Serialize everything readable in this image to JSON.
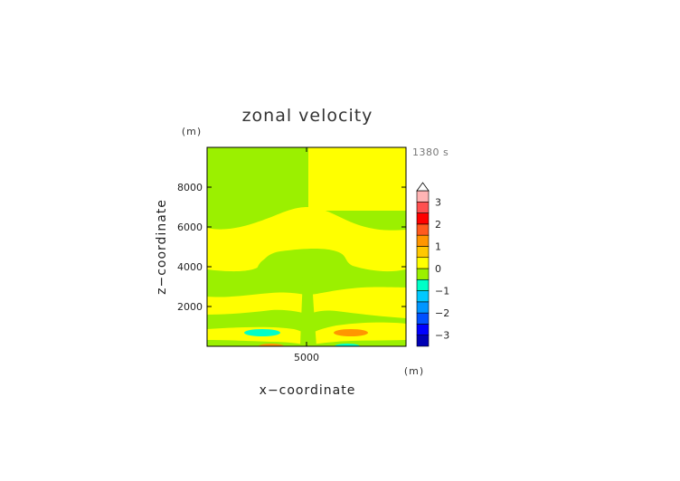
{
  "chart_data": {
    "type": "contour",
    "title": "zonal velocity",
    "time_label": "1380 s",
    "xlabel": "x−coordinate",
    "ylabel": "z−coordinate",
    "x_unit": "(m)",
    "y_unit": "(m)",
    "xlim": [
      0,
      10000
    ],
    "ylim": [
      0,
      10000
    ],
    "x_ticks": [
      5000
    ],
    "x_tick_labels": [
      "5000"
    ],
    "y_ticks": [
      2000,
      4000,
      6000,
      8000
    ],
    "y_tick_labels": [
      "2000",
      "4000",
      "6000",
      "8000"
    ],
    "colorbar": {
      "levels": [
        -3.5,
        -3,
        -2.5,
        -2,
        -1.5,
        -1,
        -0.5,
        0,
        0.5,
        1,
        1.5,
        2,
        2.5,
        3,
        3.5
      ],
      "tick_values": [
        3,
        2,
        1,
        0,
        -1,
        -2,
        -3
      ],
      "tick_labels": [
        "3",
        "2",
        "1",
        "0",
        "−1",
        "−2",
        "−3"
      ],
      "extend": "max",
      "colors": [
        "#ffb4b4",
        "#ff5050",
        "#ff0000",
        "#ff5a1e",
        "#ff9600",
        "#ffc800",
        "#ffff00",
        "#9bf000",
        "#00ffc8",
        "#00c8ff",
        "#0096ff",
        "#0050ff",
        "#0000ff",
        "#0000b4"
      ]
    },
    "field_colors": {
      "background": "#9bf000",
      "positive": "#ffff00",
      "strong_positive": "#ff9600",
      "negative": "#00ffc8"
    },
    "grid": false
  }
}
